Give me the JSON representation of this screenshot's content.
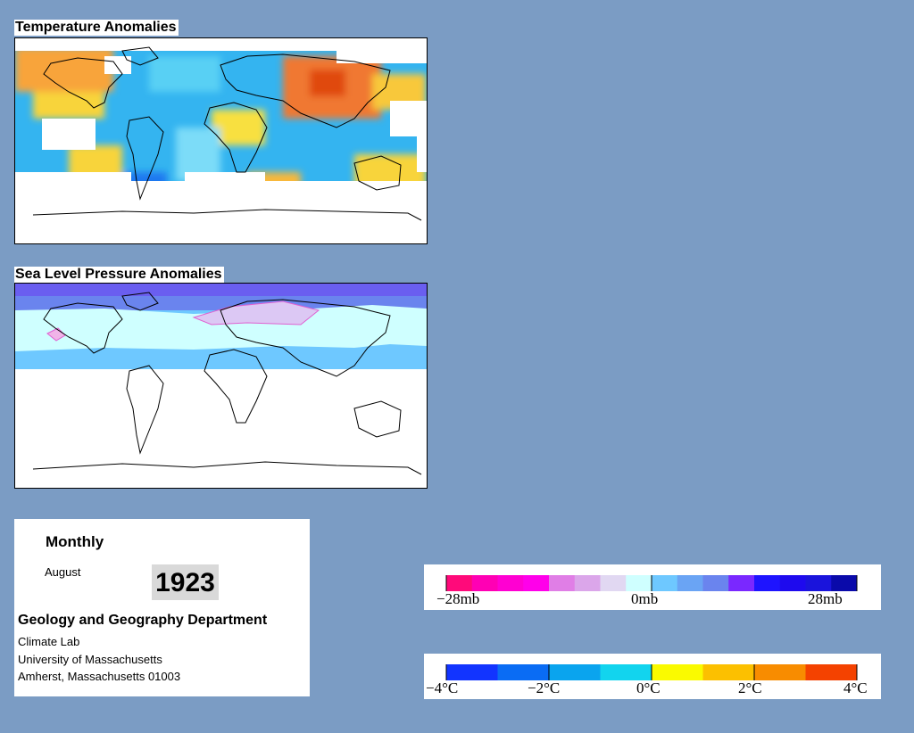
{
  "panels": {
    "temperature_title": "Temperature Anomalies",
    "pressure_title": "Sea Level Pressure Anomalies"
  },
  "info": {
    "period": "Monthly",
    "month": "August",
    "year": "1923",
    "department": "Geology and Geography Department",
    "lab": "Climate Lab",
    "university": "University of Massachusetts",
    "address": "Amherst, Massachusetts 01003"
  },
  "pressure_legend": {
    "labels": [
      "−28mb",
      "0mb",
      "28mb"
    ],
    "colors": [
      "#ff0a7a",
      "#ff00b4",
      "#ff00d2",
      "#ff00ea",
      "#e07ee6",
      "#dba6ea",
      "#e1d8f2",
      "#cfffff",
      "#6ec8ff",
      "#6aa4f4",
      "#6a84ee",
      "#7a28ff",
      "#1e14ff",
      "#1e0aee",
      "#1a14dc",
      "#0a0aaa"
    ]
  },
  "temperature_legend": {
    "labels": [
      "−4°C",
      "−2°C",
      "0°C",
      "2°C",
      "4°C"
    ],
    "colors": [
      "#1234ff",
      "#0a6cf4",
      "#0aa4ee",
      "#12d4ee",
      "#fafa00",
      "#fcc000",
      "#f88c00",
      "#f44200"
    ]
  },
  "colors": {
    "background": "#7b9cc4",
    "land_outline": "#000000"
  }
}
